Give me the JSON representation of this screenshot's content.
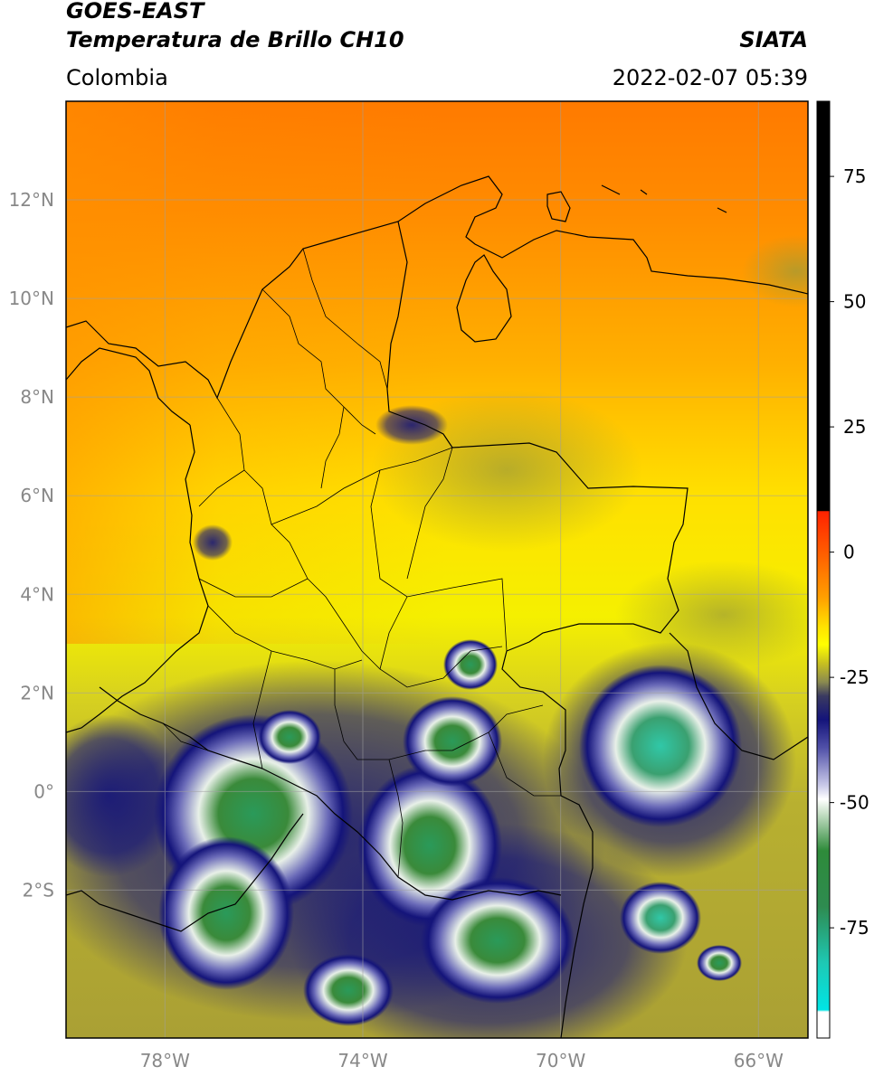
{
  "header": {
    "satellite": "GOES-EAST",
    "product": "Temperatura de Brillo CH10",
    "brand": "SIATA",
    "region": "Colombia",
    "datetime": "2022-02-07 05:39"
  },
  "map": {
    "lon_range": [
      -80,
      -65
    ],
    "lat_range": [
      -5,
      14
    ],
    "lon_ticks": [
      "78°W",
      "74°W",
      "70°W",
      "66°W"
    ],
    "lat_ticks": [
      "12°N",
      "10°N",
      "8°N",
      "6°N",
      "4°N",
      "2°N",
      "0°",
      "2°S"
    ],
    "grid": true,
    "features": [
      "country borders",
      "department borders",
      "coastline"
    ]
  },
  "colorbar": {
    "range": [
      -97,
      90
    ],
    "ticks": [
      "75",
      "50",
      "25",
      "0",
      "-25",
      "-50",
      "-75"
    ],
    "colors": {
      "black": "#000000",
      "red": "#ff2200",
      "orange": "#ff8c00",
      "yellow": "#ffff00",
      "olive": "#c8c020",
      "navy": "#14147a",
      "white": "#ffffff",
      "green": "#2e8b3a",
      "teal": "#1ec8b4",
      "cyan": "#00e5e5"
    }
  }
}
